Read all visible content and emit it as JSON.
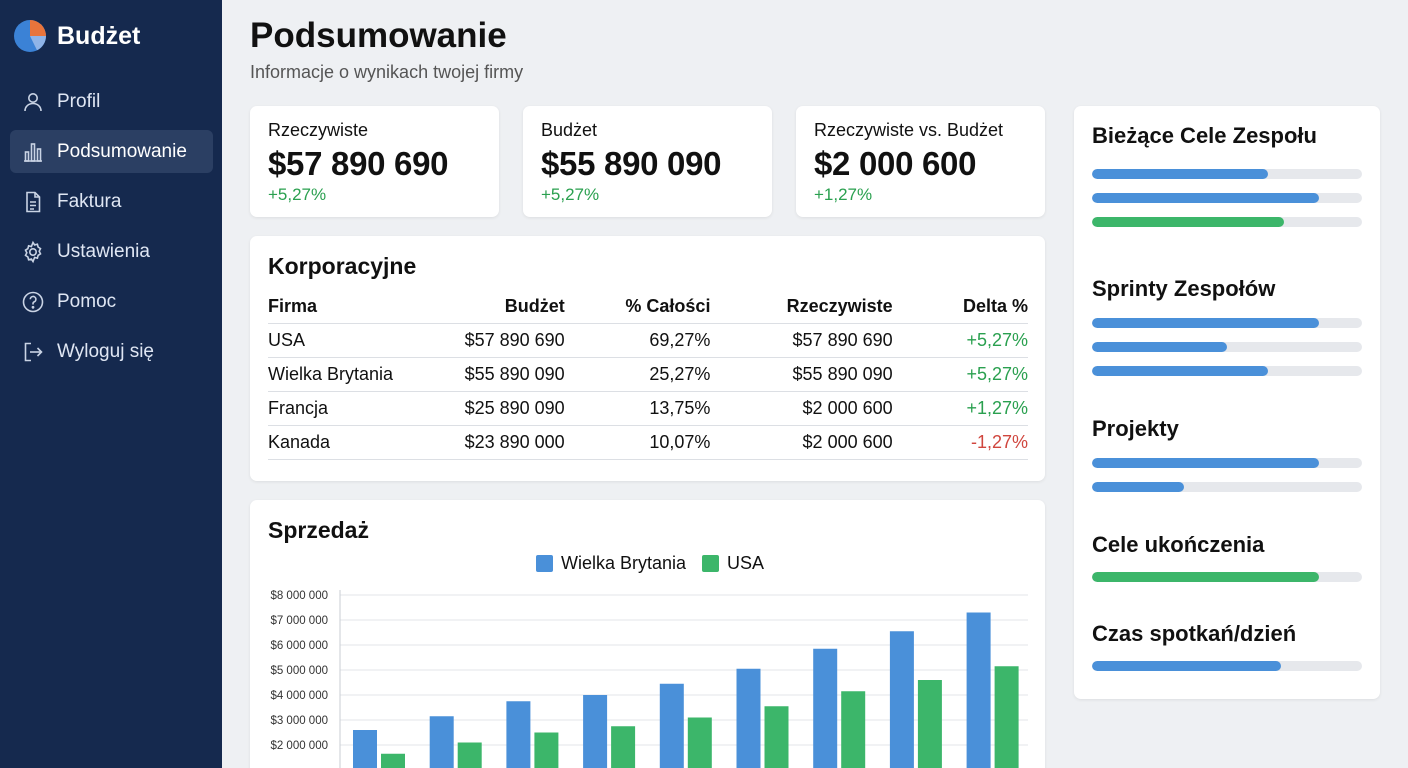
{
  "app": {
    "name": "Budżet"
  },
  "sidebar": {
    "items": [
      {
        "label": "Profil",
        "icon": "user-icon",
        "active": false
      },
      {
        "label": "Podsumowanie",
        "icon": "bar-chart-icon",
        "active": true
      },
      {
        "label": "Faktura",
        "icon": "document-icon",
        "active": false
      },
      {
        "label": "Ustawienia",
        "icon": "gear-icon",
        "active": false
      },
      {
        "label": "Pomoc",
        "icon": "help-icon",
        "active": false
      },
      {
        "label": "Wyloguj się",
        "icon": "logout-icon",
        "active": false
      }
    ]
  },
  "header": {
    "title": "Podsumowanie",
    "subtitle": "Informacje o wynikach twojej firmy"
  },
  "kpis": [
    {
      "label": "Rzeczywiste",
      "value": "$57 890 690",
      "delta": "+5,27%"
    },
    {
      "label": "Budżet",
      "value": "$55 890 090",
      "delta": "+5,27%"
    },
    {
      "label": "Rzeczywiste vs. Budżet",
      "value": "$2 000 600",
      "delta": "+1,27%"
    }
  ],
  "corporate": {
    "title": "Korporacyjne",
    "columns": [
      "Firma",
      "Budżet",
      "% Całości",
      "Rzeczywiste",
      "Delta %"
    ],
    "rows": [
      [
        "USA",
        "$57 890 690",
        "69,27%",
        "$57 890 690",
        "+5,27%"
      ],
      [
        "Wielka Brytania",
        "$55 890 090",
        "25,27%",
        "$55 890 090",
        "+5,27%"
      ],
      [
        "Francja",
        "$25 890 090",
        "13,75%",
        "$2 000 600",
        "+1,27%"
      ],
      [
        "Kanada",
        "$23 890 000",
        "10,07%",
        "$2 000 600",
        "-1,27%"
      ]
    ]
  },
  "sales": {
    "title": "Sprzedaż",
    "legend": [
      "Wielka Brytania",
      "USA"
    ]
  },
  "chart_data": {
    "type": "bar",
    "title": "Sprzedaż",
    "ylim": [
      0,
      8000000
    ],
    "ytick_labels": [
      "$2 000 000",
      "$3 000 000",
      "$4 000 000",
      "$5 000 000",
      "$6 000 000",
      "$7 000 000",
      "$8 000 000"
    ],
    "ytick_values": [
      2000000,
      3000000,
      4000000,
      5000000,
      6000000,
      7000000,
      8000000
    ],
    "series": [
      {
        "name": "Wielka Brytania",
        "color": "#4a90d9",
        "values": [
          2600000,
          3150000,
          3750000,
          4000000,
          4450000,
          5050000,
          5850000,
          6550000,
          7300000
        ]
      },
      {
        "name": "USA",
        "color": "#3cb66a",
        "values": [
          1650000,
          2100000,
          2500000,
          2750000,
          3100000,
          3550000,
          4150000,
          4600000,
          5150000
        ]
      }
    ],
    "grid": true,
    "legend_position": "top"
  },
  "goals": {
    "sections": [
      {
        "title": "Bieżące Cele Zespołu",
        "bars": [
          {
            "value": 0.65,
            "color": "#4a90d9"
          },
          {
            "value": 0.84,
            "color": "#4a90d9"
          },
          {
            "value": 0.71,
            "color": "#3cb66a"
          }
        ]
      },
      {
        "title": "Sprinty Zespołów",
        "bars": [
          {
            "value": 0.84,
            "color": "#4a90d9"
          },
          {
            "value": 0.5,
            "color": "#4a90d9"
          },
          {
            "value": 0.65,
            "color": "#4a90d9"
          }
        ]
      },
      {
        "title": "Projekty",
        "bars": [
          {
            "value": 0.84,
            "color": "#4a90d9"
          },
          {
            "value": 0.34,
            "color": "#4a90d9"
          }
        ]
      },
      {
        "title": "Cele ukończenia",
        "bars": [
          {
            "value": 0.84,
            "color": "#3cb66a"
          }
        ]
      },
      {
        "title": "Czas spotkań/dzień",
        "bars": [
          {
            "value": 0.7,
            "color": "#4a90d9"
          }
        ]
      }
    ]
  }
}
